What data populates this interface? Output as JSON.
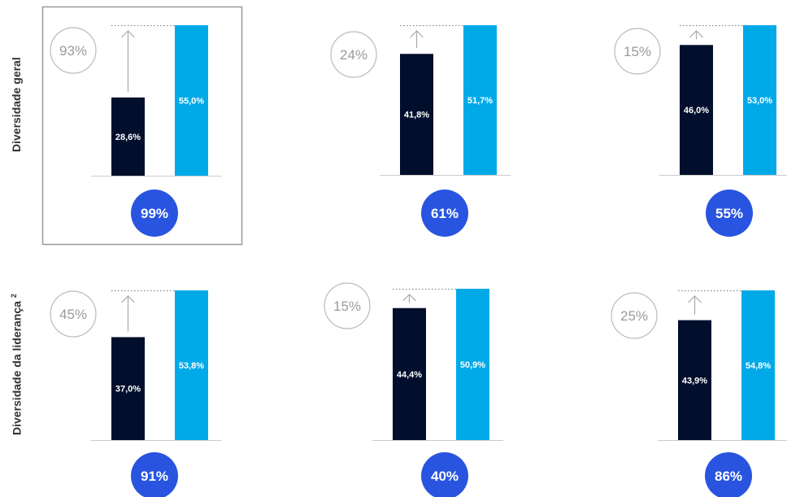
{
  "rows": [
    {
      "label": "Diversidade geral",
      "sup": ""
    },
    {
      "label": "Diversidade da liderança",
      "sup": "2"
    }
  ],
  "colors": {
    "dark_bar": "#020f2c",
    "light_bar": "#00a9e8",
    "badge": "#2854e0",
    "arrow": "#aaaaaa",
    "ring": "#bbbbbb",
    "frame": "#999999"
  },
  "chart_data": [
    {
      "type": "bar",
      "row": 0,
      "values": [
        28.6,
        55.0
      ],
      "labels": [
        "28,6%",
        "55,0%"
      ],
      "increase": "93%",
      "badge": "99%",
      "highlighted": true
    },
    {
      "type": "bar",
      "row": 0,
      "values": [
        41.8,
        51.7
      ],
      "labels": [
        "41,8%",
        "51,7%"
      ],
      "increase": "24%",
      "badge": "61%"
    },
    {
      "type": "bar",
      "row": 0,
      "values": [
        46.0,
        53.0
      ],
      "labels": [
        "46,0%",
        "53,0%"
      ],
      "increase": "15%",
      "badge": "55%"
    },
    {
      "type": "bar",
      "row": 1,
      "values": [
        37.0,
        53.8
      ],
      "labels": [
        "37,0%",
        "53,8%"
      ],
      "increase": "45%",
      "badge": "91%"
    },
    {
      "type": "bar",
      "row": 1,
      "values": [
        44.4,
        50.9
      ],
      "labels": [
        "44,4%",
        "50,9%"
      ],
      "increase": "15%",
      "badge": "40%"
    },
    {
      "type": "bar",
      "row": 1,
      "values": [
        43.9,
        54.8
      ],
      "labels": [
        "43,9%",
        "54,8%"
      ],
      "increase": "25%",
      "badge": "86%"
    }
  ]
}
